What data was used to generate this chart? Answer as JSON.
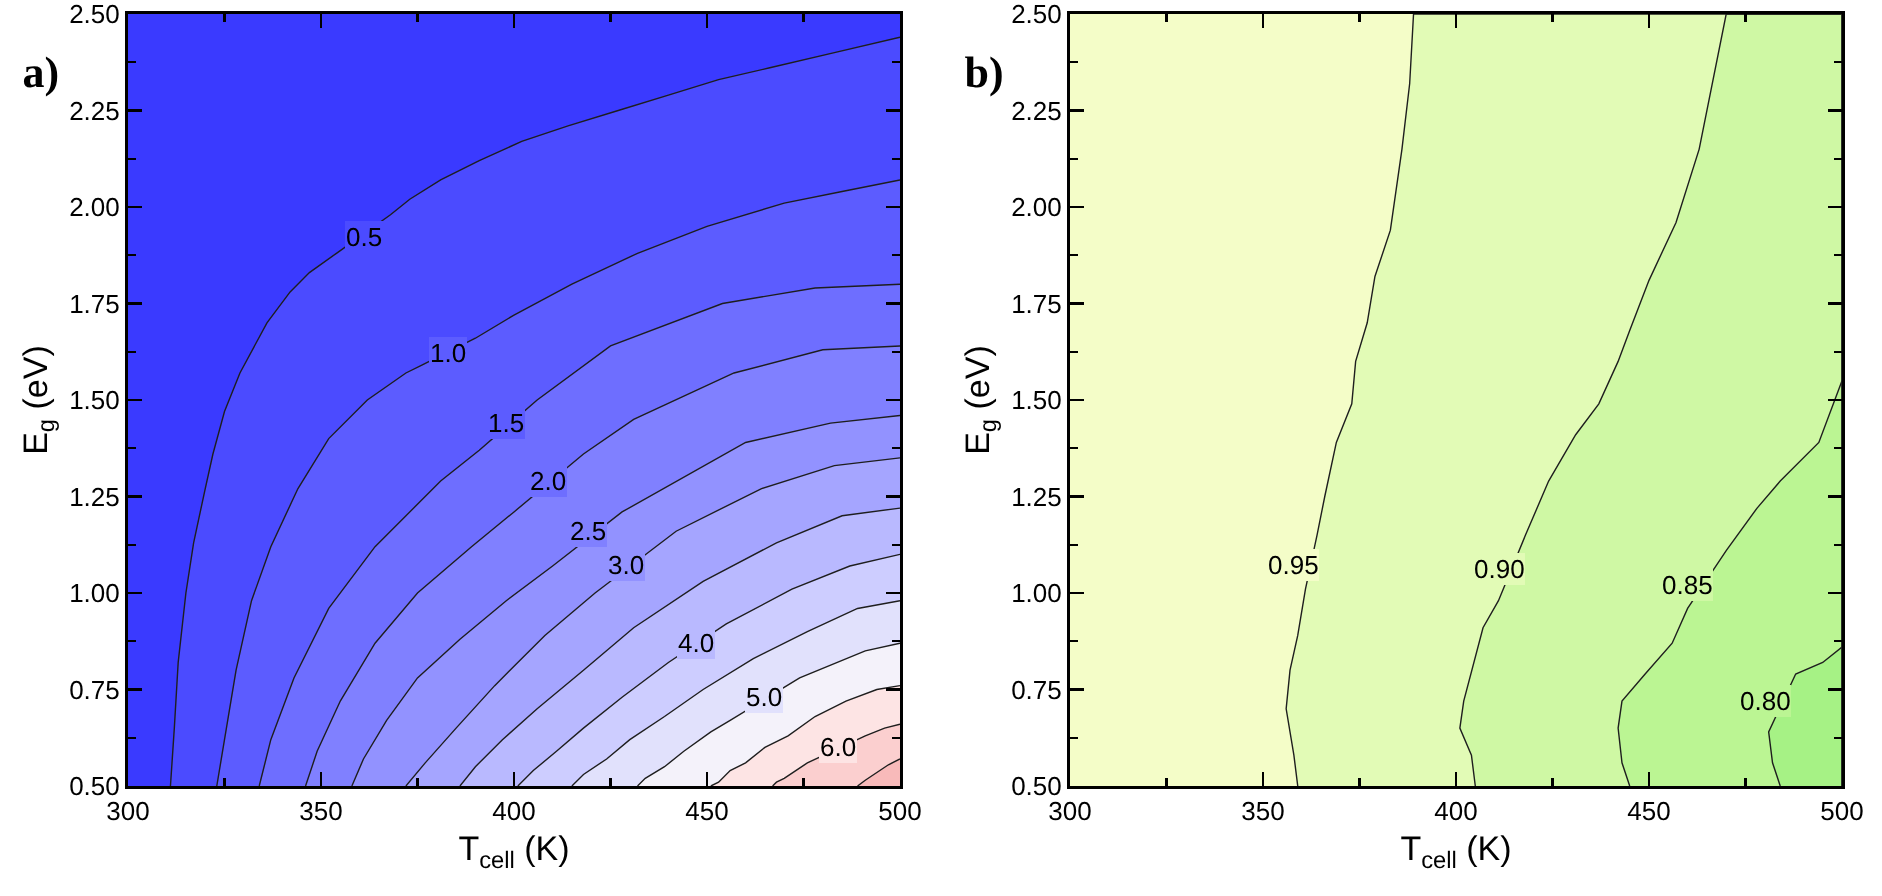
{
  "chart_data": [
    {
      "type": "area",
      "title": "a)",
      "xlabel": "T$_{cell}$ (K)",
      "ylabel": "E$_{g}$ (eV)",
      "xlim": [
        300,
        500
      ],
      "xticks": [
        300,
        {
          "value": 325,
          "label": null
        },
        350,
        {
          "value": 375,
          "label": null
        },
        400,
        {
          "value": 425,
          "label": null
        },
        450,
        {
          "value": 475,
          "label": null
        },
        500
      ],
      "ylim": [
        0.5,
        2.5
      ],
      "yticks": [
        {
          "value": 0.5,
          "label": "0.50"
        },
        {
          "value": 0.625,
          "label": null
        },
        {
          "value": 0.75,
          "label": "0.75"
        },
        {
          "value": 0.875,
          "label": null
        },
        {
          "value": 1,
          "label": "1.00"
        },
        {
          "value": 1.125,
          "label": null
        },
        {
          "value": 1.25,
          "label": "1.25"
        },
        {
          "value": 1.375,
          "label": null
        },
        {
          "value": 1.5,
          "label": "1.50"
        },
        {
          "value": 1.625,
          "label": null
        },
        {
          "value": 1.75,
          "label": "1.75"
        },
        {
          "value": 1.875,
          "label": null
        },
        {
          "value": 2,
          "label": "2.00"
        },
        {
          "value": 2.125,
          "label": null
        },
        {
          "value": 2.25,
          "label": "2.25"
        },
        {
          "value": 2.375,
          "label": null
        },
        {
          "value": 2.5,
          "label": "2.50"
        }
      ],
      "bands": [
        {
          "axis": "y",
          "from": 0.5,
          "to": 2.5,
          "color": "#3a3aff"
        }
      ],
      "series": [
        {
          "color": "#4b4bff",
          "x": [
            311,
            312,
            313,
            315,
            317,
            320,
            322,
            325,
            329,
            336,
            342,
            347,
            354,
            368,
            373,
            381,
            391,
            402,
            414,
            427,
            440,
            453,
            466,
            483,
            500
          ],
          "values": [
            0.5,
            0.65,
            0.82,
            1.0,
            1.13,
            1.27,
            1.36,
            1.47,
            1.57,
            1.7,
            1.78,
            1.83,
            1.88,
            1.98,
            2.02,
            2.07,
            2.12,
            2.17,
            2.21,
            2.25,
            2.29,
            2.33,
            2.36,
            2.4,
            2.44
          ]
        },
        {
          "color": "#5c5cff",
          "x": [
            323,
            325,
            328,
            332,
            337,
            344,
            352,
            362,
            372,
            376,
            390,
            400,
            415,
            432,
            450,
            470,
            485,
            500
          ],
          "values": [
            0.5,
            0.62,
            0.8,
            0.98,
            1.12,
            1.27,
            1.4,
            1.5,
            1.57,
            1.59,
            1.66,
            1.72,
            1.8,
            1.88,
            1.95,
            2.01,
            2.04,
            2.07
          ]
        },
        {
          "color": "#6e6eff",
          "x": [
            334,
            337,
            343,
            352,
            364,
            381,
            391,
            406,
            425,
            454,
            478,
            500
          ],
          "values": [
            0.5,
            0.62,
            0.78,
            0.96,
            1.12,
            1.29,
            1.37,
            1.5,
            1.64,
            1.75,
            1.79,
            1.8
          ]
        },
        {
          "color": "#8080ff",
          "x": [
            346,
            349,
            355,
            364,
            375,
            389,
            400,
            418,
            431,
            457,
            480,
            500
          ],
          "values": [
            0.5,
            0.59,
            0.72,
            0.87,
            1.0,
            1.12,
            1.21,
            1.36,
            1.45,
            1.57,
            1.63,
            1.64
          ]
        },
        {
          "color": "#9292ff",
          "x": [
            358,
            361,
            367,
            375,
            386,
            398,
            410,
            428,
            460,
            482,
            500
          ],
          "values": [
            0.5,
            0.57,
            0.67,
            0.78,
            0.88,
            0.98,
            1.07,
            1.21,
            1.39,
            1.44,
            1.46
          ]
        },
        {
          "color": "#a5a5ff",
          "x": [
            372,
            377,
            385,
            395,
            408,
            421,
            442,
            464,
            483,
            500
          ],
          "values": [
            0.5,
            0.56,
            0.65,
            0.76,
            0.89,
            1.0,
            1.16,
            1.27,
            1.33,
            1.35
          ]
        },
        {
          "color": "#b9b9ff",
          "x": [
            386,
            390,
            397,
            406,
            418,
            431,
            449,
            468,
            485,
            500
          ],
          "values": [
            0.5,
            0.55,
            0.62,
            0.7,
            0.8,
            0.91,
            1.03,
            1.13,
            1.2,
            1.22
          ]
        },
        {
          "color": "#cdcdff",
          "x": [
            401,
            405,
            411,
            418,
            428,
            440,
            455,
            472,
            487,
            500
          ],
          "values": [
            0.5,
            0.54,
            0.59,
            0.65,
            0.73,
            0.82,
            0.92,
            1.01,
            1.07,
            1.1
          ]
        },
        {
          "color": "#e1e1fc",
          "x": [
            415,
            418,
            424,
            430,
            439,
            449,
            462,
            476,
            489,
            500
          ],
          "values": [
            0.5,
            0.53,
            0.57,
            0.62,
            0.68,
            0.75,
            0.83,
            0.9,
            0.96,
            0.98
          ]
        },
        {
          "color": "#f4f2fa",
          "x": [
            432,
            434,
            439,
            444,
            451,
            456,
            474,
            491,
            500
          ],
          "values": [
            0.5,
            0.52,
            0.55,
            0.59,
            0.64,
            0.67,
            0.78,
            0.85,
            0.87
          ]
        },
        {
          "color": "#fde4e4",
          "x": [
            451,
            453,
            456,
            460,
            465,
            471,
            478,
            486,
            494,
            500
          ],
          "values": [
            0.5,
            0.51,
            0.54,
            0.56,
            0.6,
            0.63,
            0.68,
            0.72,
            0.75,
            0.76
          ]
        },
        {
          "color": "#fbcfcf",
          "x": [
            467,
            468,
            470,
            473,
            476,
            491,
            496,
            500
          ],
          "values": [
            0.5,
            0.51,
            0.52,
            0.54,
            0.56,
            0.63,
            0.65,
            0.66
          ]
        },
        {
          "color": "#f8baba",
          "x": [
            489,
            491,
            494,
            497,
            500
          ],
          "values": [
            0.5,
            0.515,
            0.535,
            0.555,
            0.57
          ]
        }
      ],
      "annotations": [
        {
          "text": "0.5",
          "x": 361,
          "y": 1.92
        },
        {
          "text": "1.0",
          "x": 383,
          "y": 1.62
        },
        {
          "text": "1.5",
          "x": 398,
          "y": 1.44
        },
        {
          "text": "2.0",
          "x": 409,
          "y": 1.29
        },
        {
          "text": "2.5",
          "x": 419,
          "y": 1.16
        },
        {
          "text": "3.0",
          "x": 429,
          "y": 1.07
        },
        {
          "text": "4.0",
          "x": 447,
          "y": 0.87
        },
        {
          "text": "5.0",
          "x": 465,
          "y": 0.73
        },
        {
          "text": "6.0",
          "x": 484,
          "y": 0.6
        }
      ]
    },
    {
      "type": "area",
      "title": "b)",
      "xlabel": "T$_{cell}$ (K)",
      "ylabel": "E$_{g}$ (eV)",
      "xlim": [
        300,
        500
      ],
      "xticks": [
        300,
        {
          "value": 325,
          "label": null
        },
        350,
        {
          "value": 375,
          "label": null
        },
        400,
        {
          "value": 425,
          "label": null
        },
        450,
        {
          "value": 475,
          "label": null
        },
        500
      ],
      "ylim": [
        0.5,
        2.5
      ],
      "yticks": [
        {
          "value": 0.5,
          "label": "0.50"
        },
        {
          "value": 0.625,
          "label": null
        },
        {
          "value": 0.75,
          "label": "0.75"
        },
        {
          "value": 0.875,
          "label": null
        },
        {
          "value": 1,
          "label": "1.00"
        },
        {
          "value": 1.125,
          "label": null
        },
        {
          "value": 1.25,
          "label": "1.25"
        },
        {
          "value": 1.375,
          "label": null
        },
        {
          "value": 1.5,
          "label": "1.50"
        },
        {
          "value": 1.625,
          "label": null
        },
        {
          "value": 1.75,
          "label": "1.75"
        },
        {
          "value": 1.875,
          "label": null
        },
        {
          "value": 2,
          "label": "2.00"
        },
        {
          "value": 2.125,
          "label": null
        },
        {
          "value": 2.25,
          "label": "2.25"
        },
        {
          "value": 2.375,
          "label": null
        },
        {
          "value": 2.5,
          "label": "2.50"
        }
      ],
      "bands": [
        {
          "axis": "y",
          "from": 0.5,
          "to": 2.5,
          "color": "#f4fdc8"
        }
      ],
      "series": [
        {
          "color": "#e2fbb6",
          "x": [
            359,
            358,
            356,
            357,
            359,
            361,
            364,
            366,
            369,
            373,
            374,
            377,
            379,
            383,
            386,
            388,
            389,
            500,
            500
          ],
          "values": [
            0.5,
            0.58,
            0.7,
            0.8,
            0.89,
            1.01,
            1.15,
            1.25,
            1.39,
            1.49,
            1.6,
            1.7,
            1.82,
            1.94,
            2.15,
            2.32,
            2.5,
            2.5,
            0.5
          ]
        },
        {
          "color": "#cff8a4",
          "x": [
            405,
            404,
            401,
            402,
            407,
            411,
            418,
            424,
            431,
            437,
            442,
            445,
            450,
            457,
            463,
            470,
            500,
            500
          ],
          "values": [
            0.5,
            0.58,
            0.65,
            0.72,
            0.91,
            0.98,
            1.15,
            1.29,
            1.41,
            1.49,
            1.6,
            1.68,
            1.81,
            1.96,
            2.15,
            2.5,
            2.5,
            0.5
          ]
        },
        {
          "color": "#bbf593",
          "x": [
            445,
            443,
            442,
            443,
            449,
            456,
            460,
            470,
            478,
            484,
            494,
            500
          ],
          "values": [
            0.5,
            0.56,
            0.65,
            0.72,
            0.79,
            0.87,
            0.96,
            1.11,
            1.22,
            1.29,
            1.39,
            1.55
          ]
        },
        {
          "color": "#a6f285",
          "x": [
            484,
            482,
            481,
            488,
            495,
            500
          ],
          "values": [
            0.5,
            0.56,
            0.64,
            0.79,
            0.82,
            0.86
          ]
        }
      ],
      "annotations": [
        {
          "text": "0.95",
          "x": 358,
          "y": 1.07
        },
        {
          "text": "0.90",
          "x": 411,
          "y": 1.06
        },
        {
          "text": "0.85",
          "x": 460,
          "y": 1.02
        },
        {
          "text": "0.80",
          "x": 480,
          "y": 0.72
        }
      ]
    }
  ]
}
